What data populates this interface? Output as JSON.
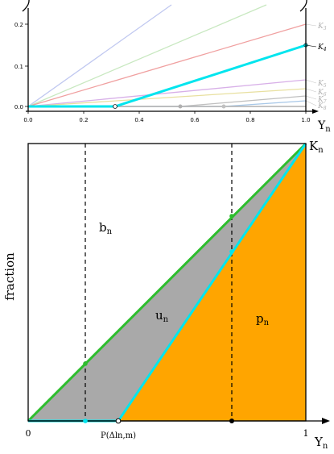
{
  "top_panel": {
    "x_ticks": [
      "0.0",
      "0.2",
      "0.4",
      "0.6",
      "0.8",
      "1.0"
    ],
    "y_ticks": [
      "0.0",
      "0.1",
      "0.2"
    ],
    "x_axis_label": "Y",
    "x_axis_label_sub": "n",
    "curves": [
      {
        "name": "K3",
        "label": "K",
        "sub": "3",
        "color": "#f0a0a0",
        "highlight": false
      },
      {
        "name": "K4",
        "label": "K",
        "sub": "4",
        "color": "#00e5ee",
        "highlight": true
      },
      {
        "name": "K5",
        "label": "K",
        "sub": "5",
        "color": "#d8b0e8",
        "highlight": false
      },
      {
        "name": "K6",
        "label": "K",
        "sub": "6",
        "color": "#e8e0a0",
        "highlight": false
      },
      {
        "name": "K7",
        "label": "K",
        "sub": "7",
        "color": "#c0c0c0",
        "highlight": false
      },
      {
        "name": "K8",
        "label": "K",
        "sub": "8",
        "color": "#a8c8e8",
        "highlight": false
      }
    ],
    "extra_lines": [
      {
        "name": "blue-line",
        "color": "#c0c8f0"
      },
      {
        "name": "green-line",
        "color": "#c8e8c0"
      }
    ]
  },
  "bottom_panel": {
    "y_axis_label": "fraction",
    "x_axis_label": "Y",
    "x_axis_label_sub": "n",
    "x_tick_0": "0",
    "x_tick_1": "1",
    "corner_label": "K",
    "corner_label_sub": "n",
    "point_label": "P(Δln,m)",
    "region_labels": [
      {
        "name": "b",
        "label": "b",
        "sub": "n"
      },
      {
        "name": "u",
        "label": "u",
        "sub": "n"
      },
      {
        "name": "p",
        "label": "p",
        "sub": "n"
      }
    ],
    "colors": {
      "orange": "#ffa500",
      "gray": "#a9a9a9",
      "green": "#2ebd2e",
      "cyan": "#00e5ee"
    }
  }
}
